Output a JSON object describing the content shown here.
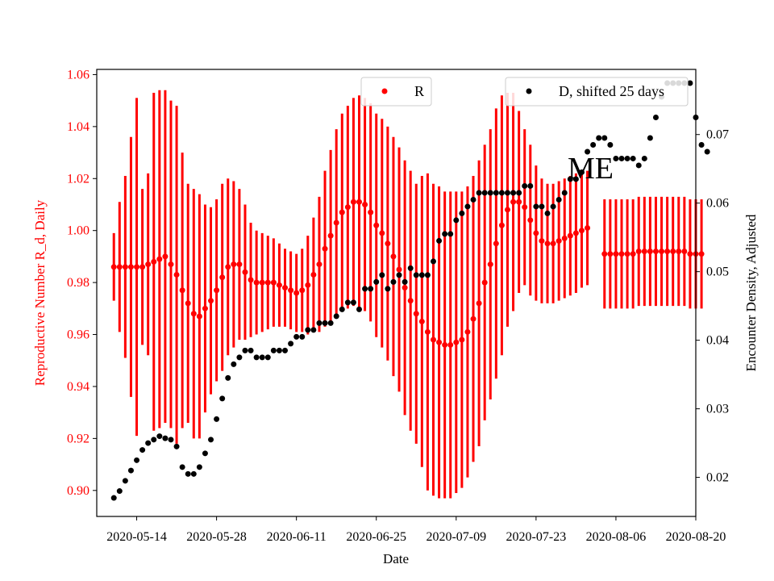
{
  "chart_data": {
    "type": "scatter",
    "title": "",
    "xlabel": "Date",
    "ylabel_left": "Reproductive Number R_d, Daily",
    "ylabel_right": "Encounter Density, Adjusted",
    "annotation": "ME",
    "x_start": "2020-05-10",
    "xlim": [
      "2020-05-07",
      "2020-08-20"
    ],
    "ylim_left": [
      0.89,
      1.062
    ],
    "ylim_right": [
      0.0143,
      0.0795
    ],
    "x_ticks": [
      "2020-05-14",
      "2020-05-28",
      "2020-06-11",
      "2020-06-25",
      "2020-07-09",
      "2020-07-23",
      "2020-08-06",
      "2020-08-20"
    ],
    "y_ticks_left": [
      "0.90",
      "0.92",
      "0.94",
      "0.96",
      "0.98",
      "1.00",
      "1.02",
      "1.04",
      "1.06"
    ],
    "y_ticks_right": [
      "0.02",
      "0.03",
      "0.04",
      "0.05",
      "0.06",
      "0.07"
    ],
    "legend_left": {
      "label": "R",
      "position": "top-center"
    },
    "legend_right": {
      "label": "D, shifted 25 days",
      "position": "top-right"
    },
    "colors": {
      "r_series": "#ff0000",
      "d_series": "#000000",
      "ylabel_left": "#ff0000",
      "ylabel_right": "#000000"
    },
    "series": [
      {
        "name": "R",
        "axis": "left",
        "errorbars": true,
        "y": [
          0.986,
          0.986,
          0.986,
          0.986,
          0.986,
          0.986,
          0.987,
          0.988,
          0.989,
          0.99,
          0.987,
          0.983,
          0.977,
          0.972,
          0.968,
          0.967,
          0.97,
          0.973,
          0.977,
          0.982,
          0.986,
          0.987,
          0.987,
          0.984,
          0.981,
          0.98,
          0.98,
          0.98,
          0.98,
          0.979,
          0.978,
          0.977,
          0.976,
          0.977,
          0.979,
          0.983,
          0.987,
          0.993,
          0.998,
          1.003,
          1.007,
          1.009,
          1.011,
          1.011,
          1.01,
          1.007,
          1.002,
          0.999,
          0.995,
          0.99,
          0.985,
          0.978,
          0.973,
          0.968,
          0.965,
          0.961,
          0.958,
          0.957,
          0.956,
          0.956,
          0.957,
          0.958,
          0.961,
          0.966,
          0.972,
          0.98,
          0.987,
          0.995,
          1.002,
          1.008,
          1.011,
          1.011,
          1.009,
          1.004,
          0.999,
          0.996,
          0.995,
          0.995,
          0.996,
          0.997,
          0.998,
          0.999,
          1.0,
          1.001
        ],
        "err": [
          0.013,
          0.025,
          0.035,
          0.05,
          0.065,
          0.03,
          0.035,
          0.065,
          0.065,
          0.064,
          0.063,
          0.065,
          0.053,
          0.046,
          0.048,
          0.047,
          0.04,
          0.036,
          0.035,
          0.036,
          0.034,
          0.032,
          0.029,
          0.026,
          0.022,
          0.02,
          0.019,
          0.018,
          0.017,
          0.016,
          0.015,
          0.015,
          0.015,
          0.016,
          0.019,
          0.022,
          0.026,
          0.03,
          0.033,
          0.036,
          0.038,
          0.039,
          0.04,
          0.041,
          0.041,
          0.042,
          0.043,
          0.044,
          0.045,
          0.046,
          0.047,
          0.049,
          0.05,
          0.05,
          0.056,
          0.061,
          0.06,
          0.06,
          0.059,
          0.059,
          0.058,
          0.057,
          0.056,
          0.055,
          0.055,
          0.053,
          0.052,
          0.052,
          0.05,
          0.045,
          0.042,
          0.035,
          0.03,
          0.029,
          0.026,
          0.024,
          0.023,
          0.023,
          0.023,
          0.023,
          0.023,
          0.023,
          0.022,
          0.022
        ]
      },
      {
        "name": "R",
        "axis": "left",
        "errorbars": true,
        "x_offset_days": 86,
        "y": [
          0.991,
          0.991,
          0.991,
          0.991,
          0.991,
          0.991,
          0.992,
          0.992,
          0.992,
          0.992,
          0.992,
          0.992,
          0.992,
          0.992,
          0.992,
          0.991,
          0.991,
          0.991
        ],
        "err": [
          0.021,
          0.021,
          0.021,
          0.021,
          0.021,
          0.021,
          0.021,
          0.021,
          0.021,
          0.021,
          0.021,
          0.021,
          0.021,
          0.021,
          0.021,
          0.021,
          0.021,
          0.021
        ]
      },
      {
        "name": "D, shifted 25 days",
        "axis": "right",
        "errorbars": false,
        "y": [
          0.017,
          0.018,
          0.0195,
          0.021,
          0.0225,
          0.024,
          0.025,
          0.0255,
          0.026,
          0.0257,
          0.0255,
          0.0245,
          0.0215,
          0.0205,
          0.0205,
          0.0215,
          0.0235,
          0.0255,
          0.0285,
          0.0315,
          0.0345,
          0.0365,
          0.0375,
          0.0385,
          0.0385,
          0.0375,
          0.0375,
          0.0375,
          0.0385,
          0.0385,
          0.0385,
          0.0395,
          0.0405,
          0.0405,
          0.0415,
          0.0415,
          0.0425,
          0.0425,
          0.0425,
          0.0435,
          0.0445,
          0.0455,
          0.0455,
          0.0445,
          0.0475,
          0.0475,
          0.0485,
          0.0495,
          0.0475,
          0.0485,
          0.0495,
          0.0485,
          0.0505,
          0.0495,
          0.0495,
          0.0495,
          0.0515,
          0.0545,
          0.0555,
          0.0555,
          0.0575,
          0.0585,
          0.0595,
          0.0605,
          0.0615,
          0.0615,
          0.0615,
          0.0615,
          0.0615,
          0.0615,
          0.0615,
          0.0615,
          0.0625,
          0.0625,
          0.0595,
          0.0595,
          0.0585,
          0.0595,
          0.0605,
          0.0615,
          0.0635,
          0.0635,
          0.0645,
          0.0675,
          0.0685,
          0.0695,
          0.0695,
          0.0685,
          0.0665,
          0.0665,
          0.0665,
          0.0665,
          0.0655,
          0.0665,
          0.0695,
          0.0725,
          0.0755,
          0.0775,
          0.0775,
          0.0775,
          0.0775,
          0.0775,
          0.0725,
          0.0685,
          0.0675
        ]
      }
    ]
  }
}
